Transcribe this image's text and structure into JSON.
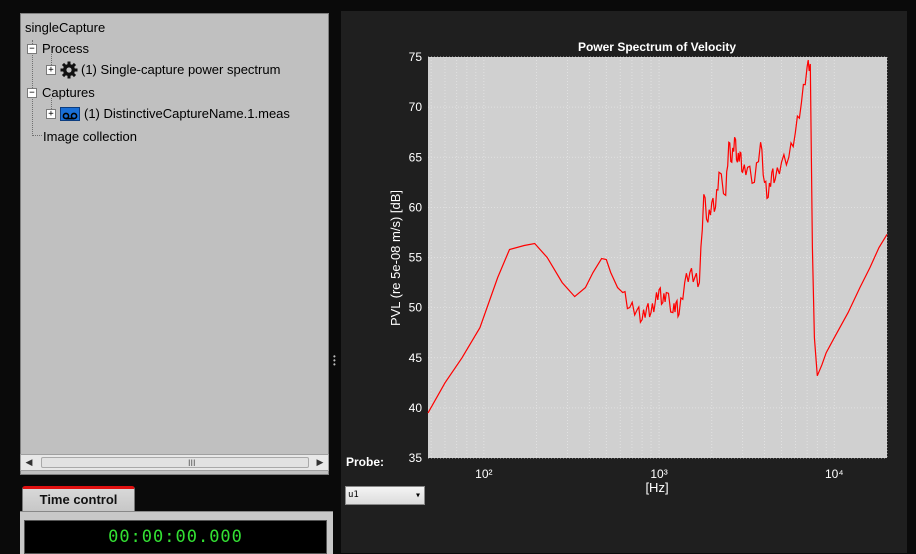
{
  "tree": {
    "root_label": "singleCapture",
    "process_label": "Process",
    "process_item_label": "(1) Single-capture power spectrum",
    "captures_label": "Captures",
    "capture_item_label": "(1) DistinctiveCaptureName.1.meas",
    "image_collection_label": "Image collection",
    "process_icon": "gear-icon",
    "capture_icon": "tape-icon"
  },
  "scrollbar": {
    "grip": "III",
    "left_arrow": "◀",
    "right_arrow": "▶"
  },
  "time_control": {
    "tab_label": "Time control",
    "time_value": "00:00:00.000"
  },
  "probe": {
    "label": "Probe:",
    "selected": "u1"
  },
  "colors": {
    "panel_bg": "#c0c0c0",
    "plot_bg": "#d0d0d0",
    "line": "#ff0000",
    "accent_tab": "#e01010",
    "time_text": "#33e033"
  },
  "chart_data": {
    "type": "line",
    "title": "Power Spectrum of Velocity",
    "ylabel": "PVL (re 5e-08 m/s) [dB]",
    "xlabel": "[Hz]",
    "xscale": "log",
    "xlim": [
      48,
      20000
    ],
    "ylim": [
      35,
      75
    ],
    "yticks": [
      35,
      40,
      45,
      50,
      55,
      60,
      65,
      70,
      75
    ],
    "xticks": [
      {
        "value": 100,
        "label": "10²"
      },
      {
        "value": 1000,
        "label": "10³"
      },
      {
        "value": 10000,
        "label": "10⁴"
      }
    ],
    "grid": true,
    "series": [
      {
        "color": "#ff0000",
        "x": [
          48,
          60,
          75,
          95,
          120,
          140,
          170,
          195,
          230,
          280,
          330,
          380,
          420,
          470,
          500,
          530,
          580,
          620,
          680,
          750,
          800,
          850,
          900,
          950,
          1000,
          1050,
          1100,
          1200,
          1250,
          1300,
          1400,
          1500,
          1600,
          1700,
          1800,
          1900,
          2000,
          2100,
          2200,
          2400,
          2500,
          2600,
          2700,
          2800,
          2900,
          3000,
          3200,
          3500,
          3800,
          4000,
          4200,
          4400,
          4600,
          5000,
          5500,
          6000,
          6500,
          7000,
          7300,
          7500,
          7700,
          8000,
          8500,
          9000,
          10000,
          12000,
          14000,
          16000,
          18000,
          20000
        ],
        "y": [
          39.5,
          42.5,
          45,
          48,
          53,
          55.8,
          56.2,
          56.4,
          55,
          52.5,
          51.1,
          52,
          53.5,
          54.9,
          54.8,
          53.5,
          52,
          51.5,
          50,
          49.8,
          48.8,
          50,
          49.5,
          50.5,
          51.8,
          50.5,
          51.5,
          49.5,
          50.5,
          49.3,
          52.5,
          53.5,
          53,
          52.5,
          61.3,
          58.5,
          60.5,
          60,
          63.5,
          61.2,
          66.5,
          64.5,
          67,
          64.5,
          65.5,
          63.5,
          64,
          62.5,
          66.5,
          62.5,
          61,
          63.5,
          62.8,
          64.5,
          65,
          67.5,
          70.5,
          74,
          74.3,
          56,
          47,
          43.2,
          44.3,
          45.5,
          47,
          49.5,
          52,
          54,
          56,
          57.3
        ]
      }
    ]
  }
}
